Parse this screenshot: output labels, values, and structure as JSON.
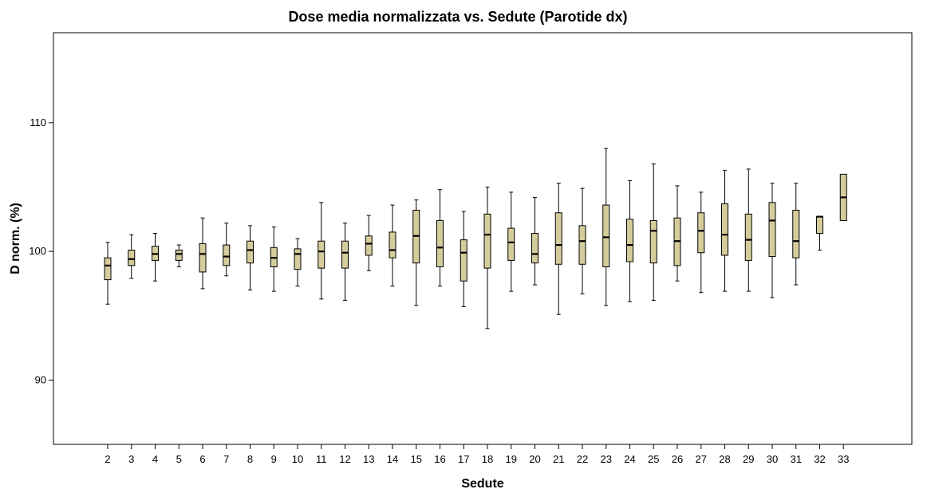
{
  "chart_data": {
    "type": "boxplot",
    "title": "Dose media normalizzata vs. Sedute (Parotide dx)",
    "xlabel": "Sedute",
    "ylabel": "D norm. (%)",
    "ylim": [
      85,
      117
    ],
    "yticks": [
      90,
      100,
      110
    ],
    "grid": false,
    "legend": "none",
    "box_color": "#d5cc9b",
    "categories": [
      "2",
      "3",
      "4",
      "5",
      "6",
      "7",
      "8",
      "9",
      "10",
      "11",
      "12",
      "13",
      "14",
      "15",
      "16",
      "17",
      "18",
      "19",
      "20",
      "21",
      "22",
      "23",
      "24",
      "25",
      "26",
      "27",
      "28",
      "29",
      "30",
      "31",
      "32",
      "33"
    ],
    "boxes": [
      {
        "min": 95.9,
        "q1": 97.8,
        "median": 98.9,
        "q3": 99.5,
        "max": 100.7
      },
      {
        "min": 97.9,
        "q1": 98.9,
        "median": 99.4,
        "q3": 100.1,
        "max": 101.3
      },
      {
        "min": 97.7,
        "q1": 99.3,
        "median": 99.8,
        "q3": 100.4,
        "max": 101.4
      },
      {
        "min": 98.8,
        "q1": 99.3,
        "median": 99.8,
        "q3": 100.1,
        "max": 100.5
      },
      {
        "min": 97.1,
        "q1": 98.4,
        "median": 99.8,
        "q3": 100.6,
        "max": 102.6
      },
      {
        "min": 98.1,
        "q1": 98.9,
        "median": 99.6,
        "q3": 100.5,
        "max": 102.2
      },
      {
        "min": 97.0,
        "q1": 99.1,
        "median": 100.1,
        "q3": 100.8,
        "max": 102.0
      },
      {
        "min": 96.9,
        "q1": 98.8,
        "median": 99.5,
        "q3": 100.3,
        "max": 101.9
      },
      {
        "min": 97.3,
        "q1": 98.6,
        "median": 99.8,
        "q3": 100.2,
        "max": 101.0
      },
      {
        "min": 96.3,
        "q1": 98.7,
        "median": 100.0,
        "q3": 100.8,
        "max": 103.8
      },
      {
        "min": 96.2,
        "q1": 98.7,
        "median": 99.9,
        "q3": 100.8,
        "max": 102.2
      },
      {
        "min": 98.5,
        "q1": 99.7,
        "median": 100.6,
        "q3": 101.2,
        "max": 102.8
      },
      {
        "min": 97.3,
        "q1": 99.5,
        "median": 100.1,
        "q3": 101.5,
        "max": 103.6
      },
      {
        "min": 95.8,
        "q1": 99.1,
        "median": 101.2,
        "q3": 103.2,
        "max": 104.0
      },
      {
        "min": 97.3,
        "q1": 98.8,
        "median": 100.3,
        "q3": 102.4,
        "max": 104.8
      },
      {
        "min": 95.7,
        "q1": 97.7,
        "median": 99.9,
        "q3": 100.9,
        "max": 103.1
      },
      {
        "min": 94.0,
        "q1": 98.7,
        "median": 101.3,
        "q3": 102.9,
        "max": 105.0
      },
      {
        "min": 96.9,
        "q1": 99.3,
        "median": 100.7,
        "q3": 101.8,
        "max": 104.6
      },
      {
        "min": 97.4,
        "q1": 99.1,
        "median": 99.8,
        "q3": 101.4,
        "max": 104.2
      },
      {
        "min": 95.1,
        "q1": 99.0,
        "median": 100.5,
        "q3": 103.0,
        "max": 105.3
      },
      {
        "min": 96.7,
        "q1": 99.0,
        "median": 100.8,
        "q3": 102.0,
        "max": 104.9
      },
      {
        "min": 95.8,
        "q1": 98.8,
        "median": 101.1,
        "q3": 103.6,
        "max": 108.0
      },
      {
        "min": 96.1,
        "q1": 99.2,
        "median": 100.5,
        "q3": 102.5,
        "max": 105.5
      },
      {
        "min": 96.2,
        "q1": 99.1,
        "median": 101.6,
        "q3": 102.4,
        "max": 106.8
      },
      {
        "min": 97.7,
        "q1": 98.9,
        "median": 100.8,
        "q3": 102.6,
        "max": 105.1
      },
      {
        "min": 96.8,
        "q1": 99.9,
        "median": 101.6,
        "q3": 103.0,
        "max": 104.6
      },
      {
        "min": 96.9,
        "q1": 99.7,
        "median": 101.3,
        "q3": 103.7,
        "max": 106.3
      },
      {
        "min": 96.9,
        "q1": 99.3,
        "median": 100.9,
        "q3": 102.9,
        "max": 106.4
      },
      {
        "min": 96.4,
        "q1": 99.6,
        "median": 102.4,
        "q3": 103.8,
        "max": 105.3
      },
      {
        "min": 97.4,
        "q1": 99.5,
        "median": 100.8,
        "q3": 103.2,
        "max": 105.3
      },
      {
        "min": 100.1,
        "q1": 101.4,
        "median": 102.7,
        "q3": 102.7,
        "max": 102.7
      },
      {
        "min": 102.4,
        "q1": 102.4,
        "median": 104.2,
        "q3": 106.0,
        "max": 106.0
      }
    ]
  }
}
